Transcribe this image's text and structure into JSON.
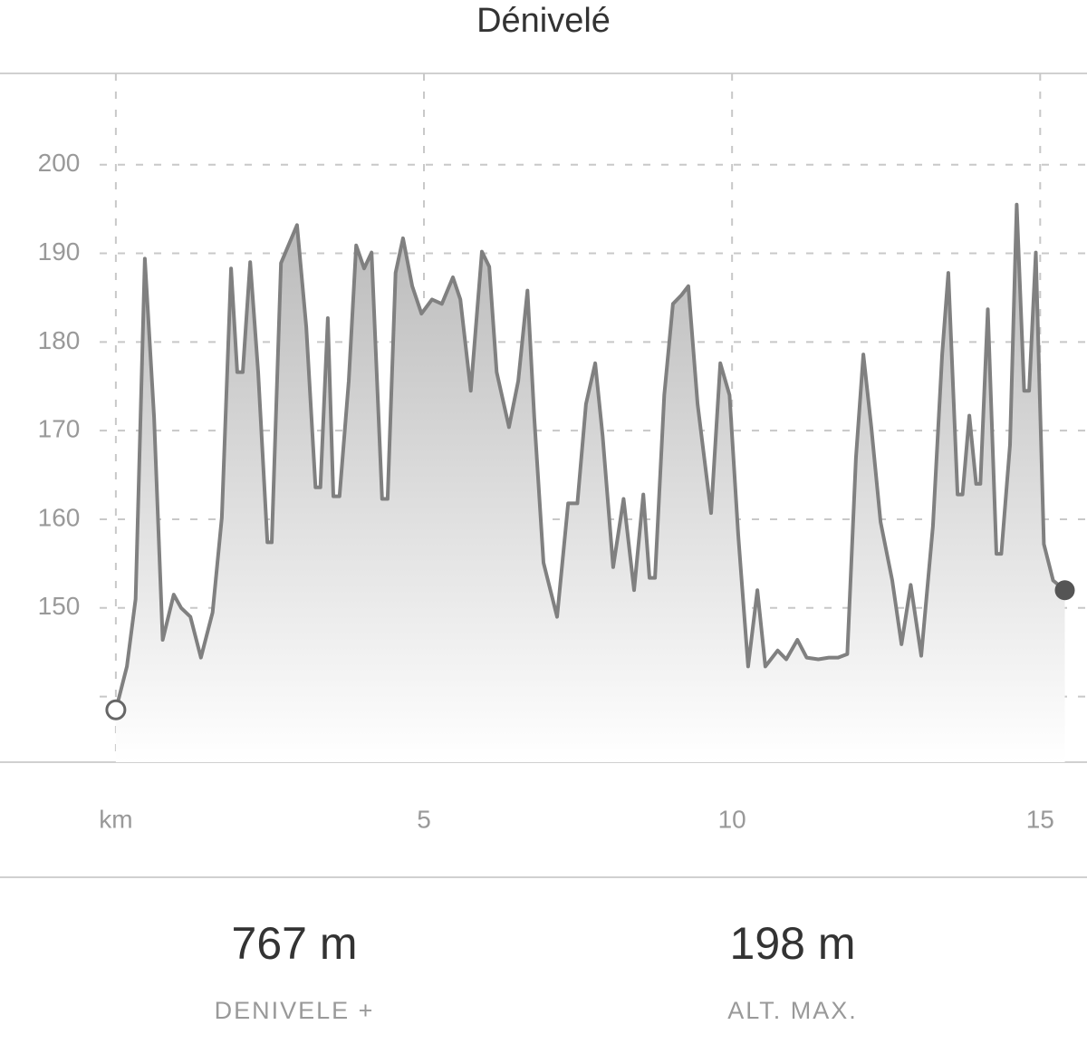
{
  "chart_data": {
    "type": "area",
    "title": "Dénivelé",
    "color": "#808080",
    "x": [
      0,
      0.18,
      0.32,
      0.47,
      0.62,
      0.76,
      0.94,
      1.06,
      1.21,
      1.38,
      1.57,
      1.72,
      1.87,
      1.97,
      2.06,
      2.18,
      2.31,
      2.46,
      2.53,
      2.68,
      2.94,
      3.09,
      3.24,
      3.32,
      3.44,
      3.53,
      3.63,
      3.78,
      3.9,
      4.03,
      4.15,
      4.32,
      4.41,
      4.54,
      4.66,
      4.81,
      4.96,
      5.13,
      5.29,
      5.47,
      5.59,
      5.76,
      5.94,
      6.06,
      6.18,
      6.38,
      6.53,
      6.68,
      6.79,
      6.94,
      7.16,
      7.34,
      7.49,
      7.63,
      7.78,
      7.9,
      8.07,
      8.24,
      8.41,
      8.56,
      8.66,
      8.75,
      8.9,
      9.04,
      9.18,
      9.29,
      9.44,
      9.66,
      9.81,
      9.96,
      10.1,
      10.26,
      10.41,
      10.54,
      10.74,
      10.88,
      11.06,
      11.21,
      11.4,
      11.57,
      11.72,
      11.87,
      12.01,
      12.13,
      12.26,
      12.41,
      12.6,
      12.75,
      12.9,
      13.07,
      13.26,
      13.41,
      13.51,
      13.66,
      13.74,
      13.85,
      13.96,
      14.03,
      14.15,
      14.29,
      14.37,
      14.51,
      14.62,
      14.74,
      14.82,
      14.93,
      15.06,
      15.21,
      15.4
    ],
    "values": [
      138.5,
      143.4,
      151,
      189.4,
      171.5,
      146.4,
      151.5,
      150,
      149,
      144.4,
      149.5,
      160.2,
      188.3,
      176.6,
      176.6,
      189,
      176.6,
      157.4,
      157.4,
      188.9,
      193.2,
      181.7,
      163.6,
      163.6,
      182.7,
      162.6,
      162.6,
      175.6,
      190.9,
      188.3,
      190.1,
      162.3,
      162.3,
      187.8,
      191.7,
      186.3,
      183.2,
      184.8,
      184.3,
      187.3,
      184.8,
      174.5,
      190.2,
      188.5,
      176.6,
      170.4,
      175.6,
      185.8,
      171.5,
      155.1,
      149,
      161.8,
      161.8,
      173,
      177.6,
      169.4,
      154.6,
      162.3,
      152,
      162.8,
      153.4,
      153.4,
      174,
      184.3,
      185.3,
      186.3,
      173,
      160.7,
      177.6,
      174,
      158.2,
      143.4,
      152,
      143.4,
      145.2,
      144.2,
      146.4,
      144.4,
      144.2,
      144.4,
      144.4,
      144.8,
      166.9,
      178.6,
      170.4,
      159.7,
      153.1,
      145.9,
      152.6,
      144.6,
      159.2,
      178.6,
      187.8,
      162.8,
      162.8,
      171.7,
      164,
      164,
      183.7,
      156.1,
      156.1,
      168.4,
      195.5,
      174.5,
      174.5,
      190.1,
      157.2,
      153.1,
      152
    ],
    "xlim": [
      -1.88,
      15.76
    ],
    "xticks": [
      {
        "value": 0,
        "label": "km"
      },
      5,
      10,
      15
    ],
    "ylim": [
      132.6,
      210.3
    ],
    "yticks": [
      {
        "value": 140,
        "label": null
      },
      150,
      160,
      170,
      180,
      190,
      200
    ],
    "grid": true
  },
  "summary": [
    {
      "value": "767 m",
      "label": "DENIVELE +"
    },
    {
      "value": "198 m",
      "label": "ALT. MAX."
    }
  ]
}
